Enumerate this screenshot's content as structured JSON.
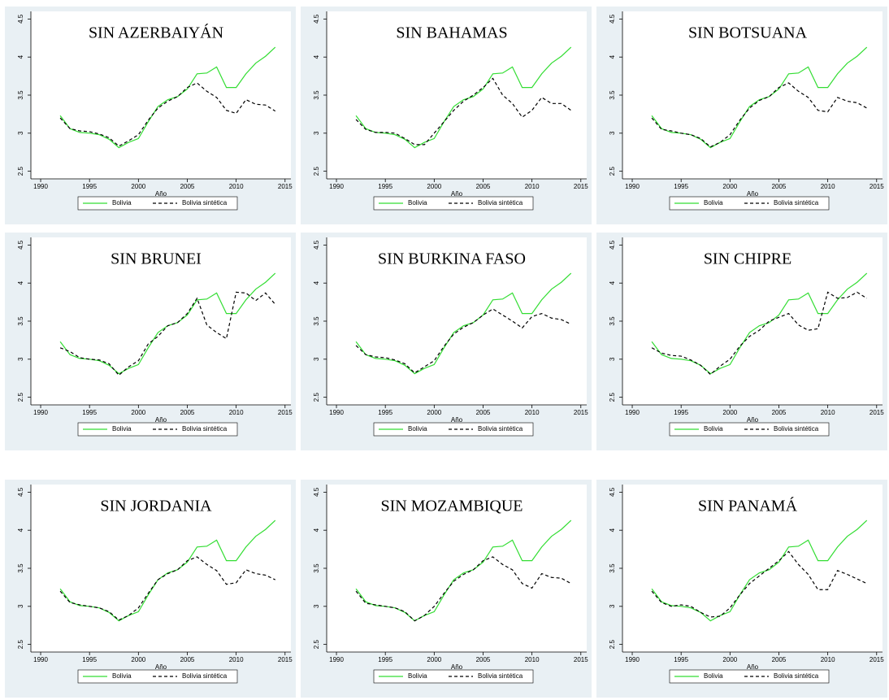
{
  "chart_data": [
    {
      "type": "line",
      "title": "SIN AZERBAIYÁN",
      "x_label": "Año",
      "xlim": [
        1989,
        2015.6
      ],
      "xticks": [
        1990,
        1995,
        2000,
        2005,
        2010,
        2015
      ],
      "ylim": [
        2.4,
        4.6
      ],
      "yticks": [
        2.5,
        3,
        3.5,
        4,
        4.5
      ],
      "legend": "bottom",
      "x": [
        1992,
        1993,
        1994,
        1995,
        1996,
        1997,
        1998,
        1999,
        2000,
        2001,
        2002,
        2003,
        2004,
        2005,
        2006,
        2007,
        2008,
        2009,
        2010,
        2011,
        2012,
        2013,
        2014
      ],
      "series": [
        {
          "name": "Bolivia",
          "color": "#33dd33",
          "dash": false,
          "values": [
            3.23,
            3.06,
            3.01,
            3.0,
            2.98,
            2.92,
            2.81,
            2.88,
            2.93,
            3.15,
            3.35,
            3.44,
            3.48,
            3.58,
            3.78,
            3.79,
            3.87,
            3.6,
            3.6,
            3.78,
            3.92,
            4.01,
            4.13
          ]
        },
        {
          "name": "Bolivia sintética",
          "color": "#000000",
          "dash": true,
          "values": [
            3.2,
            3.06,
            3.03,
            3.02,
            2.99,
            2.94,
            2.83,
            2.9,
            2.98,
            3.17,
            3.33,
            3.42,
            3.48,
            3.6,
            3.66,
            3.55,
            3.47,
            3.3,
            3.26,
            3.44,
            3.38,
            3.37,
            3.29
          ]
        }
      ]
    },
    {
      "type": "line",
      "title": "SIN BAHAMAS",
      "x_label": "Año",
      "xlim": [
        1989,
        2015.6
      ],
      "xticks": [
        1990,
        1995,
        2000,
        2005,
        2010,
        2015
      ],
      "ylim": [
        2.4,
        4.6
      ],
      "yticks": [
        2.5,
        3,
        3.5,
        4,
        4.5
      ],
      "legend": "bottom",
      "x": [
        1992,
        1993,
        1994,
        1995,
        1996,
        1997,
        1998,
        1999,
        2000,
        2001,
        2002,
        2003,
        2004,
        2005,
        2006,
        2007,
        2008,
        2009,
        2010,
        2011,
        2012,
        2013,
        2014
      ],
      "series": [
        {
          "name": "Bolivia",
          "color": "#33dd33",
          "dash": false,
          "values": [
            3.23,
            3.06,
            3.01,
            3.0,
            2.98,
            2.92,
            2.81,
            2.88,
            2.93,
            3.15,
            3.35,
            3.44,
            3.48,
            3.58,
            3.78,
            3.79,
            3.87,
            3.6,
            3.6,
            3.78,
            3.92,
            4.01,
            4.13
          ]
        },
        {
          "name": "Bolivia sintética",
          "color": "#000000",
          "dash": true,
          "values": [
            3.18,
            3.05,
            3.01,
            3.01,
            3.0,
            2.93,
            2.85,
            2.85,
            3.0,
            3.15,
            3.3,
            3.42,
            3.5,
            3.6,
            3.72,
            3.5,
            3.39,
            3.21,
            3.3,
            3.47,
            3.39,
            3.39,
            3.3
          ]
        }
      ]
    },
    {
      "type": "line",
      "title": "SIN BOTSUANA",
      "x_label": "Año",
      "xlim": [
        1989,
        2015.6
      ],
      "xticks": [
        1990,
        1995,
        2000,
        2005,
        2010,
        2015
      ],
      "ylim": [
        2.4,
        4.6
      ],
      "yticks": [
        2.5,
        3,
        3.5,
        4,
        4.5
      ],
      "legend": "bottom",
      "x": [
        1992,
        1993,
        1994,
        1995,
        1996,
        1997,
        1998,
        1999,
        2000,
        2001,
        2002,
        2003,
        2004,
        2005,
        2006,
        2007,
        2008,
        2009,
        2010,
        2011,
        2012,
        2013,
        2014
      ],
      "series": [
        {
          "name": "Bolivia",
          "color": "#33dd33",
          "dash": false,
          "values": [
            3.23,
            3.06,
            3.01,
            3.0,
            2.98,
            2.92,
            2.81,
            2.88,
            2.93,
            3.15,
            3.35,
            3.44,
            3.48,
            3.58,
            3.78,
            3.79,
            3.87,
            3.6,
            3.6,
            3.78,
            3.92,
            4.01,
            4.13
          ]
        },
        {
          "name": "Bolivia sintética",
          "color": "#000000",
          "dash": true,
          "values": [
            3.2,
            3.05,
            3.03,
            3.0,
            2.98,
            2.93,
            2.82,
            2.88,
            2.98,
            3.17,
            3.33,
            3.43,
            3.48,
            3.6,
            3.66,
            3.55,
            3.47,
            3.3,
            3.28,
            3.47,
            3.42,
            3.4,
            3.33
          ]
        }
      ]
    },
    {
      "type": "line",
      "title": "SIN BRUNEI",
      "x_label": "Año",
      "xlim": [
        1989,
        2015.6
      ],
      "xticks": [
        1990,
        1995,
        2000,
        2005,
        2010,
        2015
      ],
      "ylim": [
        2.4,
        4.6
      ],
      "yticks": [
        2.5,
        3,
        3.5,
        4,
        4.5
      ],
      "legend": "bottom",
      "x": [
        1992,
        1993,
        1994,
        1995,
        1996,
        1997,
        1998,
        1999,
        2000,
        2001,
        2002,
        2003,
        2004,
        2005,
        2006,
        2007,
        2008,
        2009,
        2010,
        2011,
        2012,
        2013,
        2014
      ],
      "series": [
        {
          "name": "Bolivia",
          "color": "#33dd33",
          "dash": false,
          "values": [
            3.23,
            3.06,
            3.01,
            3.0,
            2.98,
            2.92,
            2.81,
            2.88,
            2.93,
            3.15,
            3.35,
            3.44,
            3.48,
            3.58,
            3.78,
            3.79,
            3.87,
            3.6,
            3.6,
            3.78,
            3.92,
            4.01,
            4.13
          ]
        },
        {
          "name": "Bolivia sintética",
          "color": "#000000",
          "dash": true,
          "values": [
            3.15,
            3.1,
            3.02,
            3.0,
            2.99,
            2.94,
            2.79,
            2.9,
            2.98,
            3.2,
            3.3,
            3.44,
            3.48,
            3.6,
            3.8,
            3.45,
            3.35,
            3.27,
            3.88,
            3.87,
            3.77,
            3.87,
            3.72
          ]
        }
      ]
    },
    {
      "type": "line",
      "title": "SIN BURKINA FASO",
      "x_label": "Año",
      "xlim": [
        1989,
        2015.6
      ],
      "xticks": [
        1990,
        1995,
        2000,
        2005,
        2010,
        2015
      ],
      "ylim": [
        2.4,
        4.6
      ],
      "yticks": [
        2.5,
        3,
        3.5,
        4,
        4.5
      ],
      "legend": "bottom",
      "x": [
        1992,
        1993,
        1994,
        1995,
        1996,
        1997,
        1998,
        1999,
        2000,
        2001,
        2002,
        2003,
        2004,
        2005,
        2006,
        2007,
        2008,
        2009,
        2010,
        2011,
        2012,
        2013,
        2014
      ],
      "series": [
        {
          "name": "Bolivia",
          "color": "#33dd33",
          "dash": false,
          "values": [
            3.23,
            3.06,
            3.01,
            3.0,
            2.98,
            2.92,
            2.81,
            2.88,
            2.93,
            3.15,
            3.35,
            3.44,
            3.48,
            3.58,
            3.78,
            3.79,
            3.87,
            3.6,
            3.6,
            3.78,
            3.92,
            4.01,
            4.13
          ]
        },
        {
          "name": "Bolivia sintética",
          "color": "#000000",
          "dash": true,
          "values": [
            3.18,
            3.06,
            3.03,
            3.02,
            2.99,
            2.94,
            2.82,
            2.9,
            2.98,
            3.17,
            3.33,
            3.42,
            3.48,
            3.58,
            3.66,
            3.58,
            3.5,
            3.41,
            3.56,
            3.6,
            3.54,
            3.52,
            3.46
          ]
        }
      ]
    },
    {
      "type": "line",
      "title": "SIN CHIPRE",
      "x_label": "Año",
      "xlim": [
        1989,
        2015.6
      ],
      "xticks": [
        1990,
        1995,
        2000,
        2005,
        2010,
        2015
      ],
      "ylim": [
        2.4,
        4.6
      ],
      "yticks": [
        2.5,
        3,
        3.5,
        4,
        4.5
      ],
      "legend": "bottom",
      "x": [
        1992,
        1993,
        1994,
        1995,
        1996,
        1997,
        1998,
        1999,
        2000,
        2001,
        2002,
        2003,
        2004,
        2005,
        2006,
        2007,
        2008,
        2009,
        2010,
        2011,
        2012,
        2013,
        2014
      ],
      "series": [
        {
          "name": "Bolivia",
          "color": "#33dd33",
          "dash": false,
          "values": [
            3.23,
            3.06,
            3.01,
            3.0,
            2.98,
            2.92,
            2.81,
            2.88,
            2.93,
            3.15,
            3.35,
            3.44,
            3.48,
            3.58,
            3.78,
            3.79,
            3.87,
            3.6,
            3.6,
            3.78,
            3.92,
            4.01,
            4.13
          ]
        },
        {
          "name": "Bolivia sintética",
          "color": "#000000",
          "dash": true,
          "values": [
            3.15,
            3.08,
            3.05,
            3.04,
            2.99,
            2.92,
            2.8,
            2.91,
            3.0,
            3.17,
            3.3,
            3.38,
            3.5,
            3.55,
            3.6,
            3.45,
            3.38,
            3.4,
            3.88,
            3.8,
            3.81,
            3.88,
            3.8
          ]
        }
      ]
    },
    {
      "type": "line",
      "title": "SIN JORDANIA",
      "x_label": "Año",
      "xlim": [
        1989,
        2015.6
      ],
      "xticks": [
        1990,
        1995,
        2000,
        2005,
        2010,
        2015
      ],
      "ylim": [
        2.4,
        4.6
      ],
      "yticks": [
        2.5,
        3,
        3.5,
        4,
        4.5
      ],
      "legend": "bottom",
      "x": [
        1992,
        1993,
        1994,
        1995,
        1996,
        1997,
        1998,
        1999,
        2000,
        2001,
        2002,
        2003,
        2004,
        2005,
        2006,
        2007,
        2008,
        2009,
        2010,
        2011,
        2012,
        2013,
        2014
      ],
      "series": [
        {
          "name": "Bolivia",
          "color": "#33dd33",
          "dash": false,
          "values": [
            3.23,
            3.06,
            3.01,
            3.0,
            2.98,
            2.92,
            2.81,
            2.88,
            2.93,
            3.15,
            3.35,
            3.44,
            3.48,
            3.58,
            3.78,
            3.79,
            3.87,
            3.6,
            3.6,
            3.78,
            3.92,
            4.01,
            4.13
          ]
        },
        {
          "name": "Bolivia sintética",
          "color": "#000000",
          "dash": true,
          "values": [
            3.2,
            3.05,
            3.02,
            3.0,
            2.98,
            2.93,
            2.82,
            2.88,
            2.98,
            3.17,
            3.35,
            3.43,
            3.48,
            3.6,
            3.65,
            3.55,
            3.47,
            3.29,
            3.31,
            3.48,
            3.43,
            3.41,
            3.35
          ]
        }
      ]
    },
    {
      "type": "line",
      "title": "SIN MOZAMBIQUE",
      "x_label": "Año",
      "xlim": [
        1989,
        2015.6
      ],
      "xticks": [
        1990,
        1995,
        2000,
        2005,
        2010,
        2015
      ],
      "ylim": [
        2.4,
        4.6
      ],
      "yticks": [
        2.5,
        3,
        3.5,
        4,
        4.5
      ],
      "legend": "bottom",
      "x": [
        1992,
        1993,
        1994,
        1995,
        1996,
        1997,
        1998,
        1999,
        2000,
        2001,
        2002,
        2003,
        2004,
        2005,
        2006,
        2007,
        2008,
        2009,
        2010,
        2011,
        2012,
        2013,
        2014
      ],
      "series": [
        {
          "name": "Bolivia",
          "color": "#33dd33",
          "dash": false,
          "values": [
            3.23,
            3.06,
            3.01,
            3.0,
            2.98,
            2.92,
            2.81,
            2.88,
            2.93,
            3.15,
            3.35,
            3.44,
            3.48,
            3.58,
            3.78,
            3.79,
            3.87,
            3.6,
            3.6,
            3.78,
            3.92,
            4.01,
            4.13
          ]
        },
        {
          "name": "Bolivia sintética",
          "color": "#000000",
          "dash": true,
          "values": [
            3.2,
            3.04,
            3.02,
            3.0,
            2.98,
            2.93,
            2.81,
            2.88,
            3.0,
            3.17,
            3.33,
            3.42,
            3.48,
            3.6,
            3.65,
            3.55,
            3.48,
            3.3,
            3.24,
            3.43,
            3.38,
            3.37,
            3.3
          ]
        }
      ]
    },
    {
      "type": "line",
      "title": "SIN PANAMÁ",
      "x_label": "Año",
      "xlim": [
        1989,
        2015.6
      ],
      "xticks": [
        1990,
        1995,
        2000,
        2005,
        2010,
        2015
      ],
      "ylim": [
        2.4,
        4.6
      ],
      "yticks": [
        2.5,
        3,
        3.5,
        4,
        4.5
      ],
      "legend": "bottom",
      "x": [
        1992,
        1993,
        1994,
        1995,
        1996,
        1997,
        1998,
        1999,
        2000,
        2001,
        2002,
        2003,
        2004,
        2005,
        2006,
        2007,
        2008,
        2009,
        2010,
        2011,
        2012,
        2013,
        2014
      ],
      "series": [
        {
          "name": "Bolivia",
          "color": "#33dd33",
          "dash": false,
          "values": [
            3.23,
            3.06,
            3.01,
            3.0,
            2.98,
            2.92,
            2.81,
            2.88,
            2.93,
            3.15,
            3.35,
            3.44,
            3.48,
            3.58,
            3.78,
            3.79,
            3.87,
            3.6,
            3.6,
            3.78,
            3.92,
            4.01,
            4.13
          ]
        },
        {
          "name": "Bolivia sintética",
          "color": "#000000",
          "dash": true,
          "values": [
            3.2,
            3.05,
            3.0,
            3.02,
            3.0,
            2.92,
            2.86,
            2.87,
            2.98,
            3.15,
            3.3,
            3.4,
            3.5,
            3.6,
            3.72,
            3.55,
            3.42,
            3.22,
            3.22,
            3.47,
            3.42,
            3.36,
            3.3
          ]
        }
      ]
    }
  ]
}
